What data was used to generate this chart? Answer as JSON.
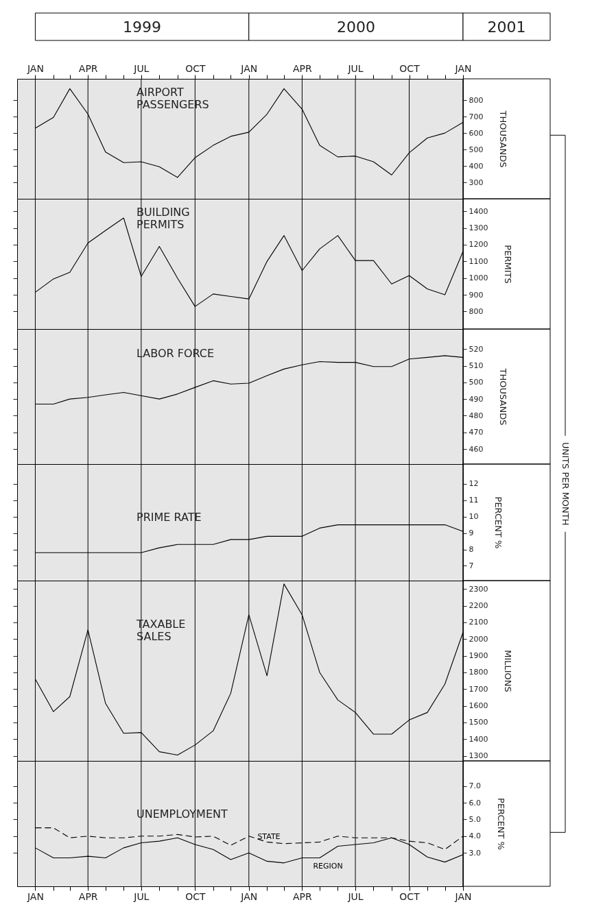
{
  "chart_data": [
    {
      "type": "line",
      "title": "AIRPORT\nPASSENGERS",
      "ylabel": "THOUSANDS",
      "annotations": [
        "1999",
        "2000",
        "2001",
        "UNITS PER MONTH"
      ],
      "x": [
        "1999-01",
        "1999-02",
        "1999-03",
        "1999-04",
        "1999-05",
        "1999-06",
        "1999-07",
        "1999-08",
        "1999-09",
        "1999-10",
        "1999-11",
        "1999-12",
        "2000-01",
        "2000-02",
        "2000-03",
        "2000-04",
        "2000-05",
        "2000-06",
        "2000-07",
        "2000-08",
        "2000-09",
        "2000-10",
        "2000-11",
        "2000-12",
        "2001-01"
      ],
      "xlim": [
        "1998-12",
        "2001-01"
      ],
      "xticks": [
        {
          "value": "1999-01",
          "label": "JAN"
        },
        {
          "value": "1999-02",
          "label": null
        },
        {
          "value": "1999-03",
          "label": null
        },
        {
          "value": "1999-04",
          "label": "APR"
        },
        {
          "value": "1999-05",
          "label": null
        },
        {
          "value": "1999-06",
          "label": null
        },
        {
          "value": "1999-07",
          "label": "JUL"
        },
        {
          "value": "1999-08",
          "label": null
        },
        {
          "value": "1999-09",
          "label": null
        },
        {
          "value": "1999-10",
          "label": "OCT"
        },
        {
          "value": "1999-11",
          "label": null
        },
        {
          "value": "1999-12",
          "label": null
        },
        {
          "value": "2000-01",
          "label": "JAN"
        },
        {
          "value": "2000-02",
          "label": null
        },
        {
          "value": "2000-03",
          "label": null
        },
        {
          "value": "2000-04",
          "label": "APR"
        },
        {
          "value": "2000-05",
          "label": null
        },
        {
          "value": "2000-06",
          "label": null
        },
        {
          "value": "2000-07",
          "label": "JUL"
        },
        {
          "value": "2000-08",
          "label": null
        },
        {
          "value": "2000-09",
          "label": null
        },
        {
          "value": "2000-10",
          "label": "OCT"
        },
        {
          "value": "2000-11",
          "label": null
        },
        {
          "value": "2000-12",
          "label": null
        },
        {
          "value": "2001-01",
          "label": "JAN"
        }
      ],
      "ylim": [
        200,
        930
      ],
      "yticks": [
        300,
        400,
        500,
        600,
        700,
        800
      ],
      "grid": "x",
      "series": [
        {
          "color": "#000000",
          "line_style": "solid",
          "values": [
            630,
            695,
            870,
            715,
            485,
            420,
            425,
            395,
            330,
            450,
            525,
            580,
            605,
            715,
            870,
            745,
            525,
            455,
            460,
            425,
            345,
            480,
            570,
            600,
            665
          ]
        }
      ]
    },
    {
      "type": "line",
      "title": "BUILDING\nPERMITS",
      "ylabel": "PERMITS",
      "tick_labels": "y",
      "x": [
        "1999-01",
        "1999-02",
        "1999-03",
        "1999-04",
        "1999-05",
        "1999-06",
        "1999-07",
        "1999-08",
        "1999-09",
        "1999-10",
        "1999-11",
        "1999-12",
        "2000-01",
        "2000-02",
        "2000-03",
        "2000-04",
        "2000-05",
        "2000-06",
        "2000-07",
        "2000-08",
        "2000-09",
        "2000-10",
        "2000-11",
        "2000-12",
        "2001-01"
      ],
      "xlim": [
        "1998-12",
        "2001-01"
      ],
      "xticks": [
        "1999-01",
        "1999-04",
        "1999-07",
        "1999-10",
        "2000-01",
        "2000-04",
        "2000-07",
        "2000-10",
        "2001-01"
      ],
      "ylim": [
        695,
        1475
      ],
      "yticks": [
        800,
        900,
        1000,
        1100,
        1200,
        1300,
        1400
      ],
      "grid": "x",
      "series": [
        {
          "color": "#000000",
          "line_style": "solid",
          "values": [
            915,
            995,
            1035,
            1210,
            1285,
            1360,
            1010,
            1190,
            1000,
            830,
            905,
            890,
            875,
            1100,
            1255,
            1045,
            1175,
            1255,
            1105,
            1105,
            965,
            1015,
            935,
            900,
            1160
          ]
        }
      ]
    },
    {
      "type": "line",
      "title": "LABOR  FORCE",
      "ylabel": "THOUSANDS",
      "tick_labels": "y",
      "x": [
        "1999-01",
        "1999-02",
        "1999-03",
        "1999-04",
        "1999-05",
        "1999-06",
        "1999-07",
        "1999-08",
        "1999-09",
        "1999-10",
        "1999-11",
        "1999-12",
        "2000-01",
        "2000-02",
        "2000-03",
        "2000-04",
        "2000-05",
        "2000-06",
        "2000-07",
        "2000-08",
        "2000-09",
        "2000-10",
        "2000-11",
        "2000-12",
        "2001-01"
      ],
      "xlim": [
        "1998-12",
        "2001-01"
      ],
      "xticks": [
        "1999-01",
        "1999-04",
        "1999-07",
        "1999-10",
        "2000-01",
        "2000-04",
        "2000-07",
        "2000-10",
        "2001-01"
      ],
      "ylim": [
        451,
        532
      ],
      "yticks": [
        460,
        470,
        480,
        490,
        500,
        510,
        520
      ],
      "grid": "x",
      "series": [
        {
          "color": "#000000",
          "line_style": "solid",
          "values": [
            487,
            487,
            490,
            491,
            492.5,
            494,
            492,
            490,
            493,
            497,
            501,
            499,
            499.5,
            504,
            508,
            510.5,
            512.5,
            512,
            512,
            509.5,
            509.5,
            514,
            515,
            516,
            515
          ]
        }
      ]
    },
    {
      "type": "line",
      "title": "PRIME  RATE",
      "ylabel": "PERCENT %",
      "tick_labels": "y",
      "x": [
        "1999-01",
        "1999-02",
        "1999-03",
        "1999-04",
        "1999-05",
        "1999-06",
        "1999-07",
        "1999-08",
        "1999-09",
        "1999-10",
        "1999-11",
        "1999-12",
        "2000-01",
        "2000-02",
        "2000-03",
        "2000-04",
        "2000-05",
        "2000-06",
        "2000-07",
        "2000-08",
        "2000-09",
        "2000-10",
        "2000-11",
        "2000-12",
        "2001-01"
      ],
      "xlim": [
        "1998-12",
        "2001-01"
      ],
      "xticks": [
        "1999-01",
        "1999-04",
        "1999-07",
        "1999-10",
        "2000-01",
        "2000-04",
        "2000-07",
        "2000-10",
        "2001-01"
      ],
      "ylim": [
        6.1,
        13.2
      ],
      "yticks": [
        7,
        8,
        9,
        10,
        11,
        12
      ],
      "grid": "x",
      "series": [
        {
          "color": "#000000",
          "line_style": "solid",
          "values": [
            7.8,
            7.8,
            7.8,
            7.8,
            7.8,
            7.8,
            7.8,
            8.1,
            8.3,
            8.3,
            8.3,
            8.6,
            8.6,
            8.8,
            8.8,
            8.8,
            9.3,
            9.5,
            9.5,
            9.5,
            9.5,
            9.5,
            9.5,
            9.5,
            9.1
          ]
        }
      ]
    },
    {
      "type": "line",
      "title": "TAXABLE\nSALES",
      "ylabel": "MILLIONS",
      "tick_labels": "y",
      "x": [
        "1999-01",
        "1999-02",
        "1999-03",
        "1999-04",
        "1999-05",
        "1999-06",
        "1999-07",
        "1999-08",
        "1999-09",
        "1999-10",
        "1999-11",
        "1999-12",
        "2000-01",
        "2000-02",
        "2000-03",
        "2000-04",
        "2000-05",
        "2000-06",
        "2000-07",
        "2000-08",
        "2000-09",
        "2000-10",
        "2000-11",
        "2000-12",
        "2001-01"
      ],
      "xlim": [
        "1998-12",
        "2001-01"
      ],
      "xticks": [
        "1999-01",
        "1999-04",
        "1999-07",
        "1999-10",
        "2000-01",
        "2000-04",
        "2000-07",
        "2000-10",
        "2001-01"
      ],
      "ylim": [
        1270,
        2350
      ],
      "yticks": [
        1300,
        1400,
        1500,
        1600,
        1700,
        1800,
        1900,
        2000,
        2100,
        2200,
        2300
      ],
      "grid": "x",
      "series": [
        {
          "color": "#000000",
          "line_style": "solid",
          "values": [
            1760,
            1565,
            1655,
            2055,
            1615,
            1435,
            1440,
            1325,
            1305,
            1365,
            1450,
            1675,
            2145,
            1780,
            2330,
            2145,
            1800,
            1635,
            1560,
            1430,
            1430,
            1515,
            1560,
            1730,
            2040
          ]
        }
      ]
    },
    {
      "type": "line",
      "title": "UNEMPLOYMENT",
      "ylabel": "PERCENT %",
      "x": [
        "1999-01",
        "1999-02",
        "1999-03",
        "1999-04",
        "1999-05",
        "1999-06",
        "1999-07",
        "1999-08",
        "1999-09",
        "1999-10",
        "1999-11",
        "1999-12",
        "2000-01",
        "2000-02",
        "2000-03",
        "2000-04",
        "2000-05",
        "2000-06",
        "2000-07",
        "2000-08",
        "2000-09",
        "2000-10",
        "2000-11",
        "2000-12",
        "2001-01"
      ],
      "xlim": [
        "1998-12",
        "2001-01"
      ],
      "xticks": [
        {
          "value": "1999-01",
          "label": "JAN"
        },
        {
          "value": "1999-02",
          "label": null
        },
        {
          "value": "1999-03",
          "label": null
        },
        {
          "value": "1999-04",
          "label": "APR"
        },
        {
          "value": "1999-05",
          "label": null
        },
        {
          "value": "1999-06",
          "label": null
        },
        {
          "value": "1999-07",
          "label": "JUL"
        },
        {
          "value": "1999-08",
          "label": null
        },
        {
          "value": "1999-09",
          "label": null
        },
        {
          "value": "1999-10",
          "label": "OCT"
        },
        {
          "value": "1999-11",
          "label": null
        },
        {
          "value": "1999-12",
          "label": null
        },
        {
          "value": "2000-01",
          "label": "JAN"
        },
        {
          "value": "2000-02",
          "label": null
        },
        {
          "value": "2000-03",
          "label": null
        },
        {
          "value": "2000-04",
          "label": "APR"
        },
        {
          "value": "2000-05",
          "label": null
        },
        {
          "value": "2000-06",
          "label": null
        },
        {
          "value": "2000-07",
          "label": "JUL"
        },
        {
          "value": "2000-08",
          "label": null
        },
        {
          "value": "2000-09",
          "label": null
        },
        {
          "value": "2000-10",
          "label": "OCT"
        },
        {
          "value": "2000-11",
          "label": null
        },
        {
          "value": "2000-12",
          "label": null
        },
        {
          "value": "2001-01",
          "label": "JAN"
        }
      ],
      "ylim": [
        1.0,
        8.5
      ],
      "yticks": [
        {
          "value": 3,
          "label": "3.0"
        },
        {
          "value": 4,
          "label": "4.0"
        },
        {
          "value": 5,
          "label": "5.0"
        },
        {
          "value": 6,
          "label": "6.0"
        },
        {
          "value": 7,
          "label": "7.0"
        }
      ],
      "grid": "x",
      "series": [
        {
          "name": "STATE",
          "color": "#000000",
          "line_style": "dashed",
          "values": [
            4.5,
            4.5,
            3.9,
            4.0,
            3.9,
            3.9,
            4.0,
            4.0,
            4.1,
            3.95,
            4.0,
            3.45,
            4.0,
            3.65,
            3.55,
            3.6,
            3.65,
            4.0,
            3.9,
            3.9,
            3.9,
            3.7,
            3.6,
            3.2,
            4.0
          ]
        },
        {
          "name": "REGION",
          "color": "#000000",
          "line_style": "solid",
          "values": [
            3.3,
            2.7,
            2.7,
            2.8,
            2.7,
            3.3,
            3.6,
            3.7,
            3.9,
            3.5,
            3.2,
            2.6,
            3.0,
            2.5,
            2.4,
            2.7,
            2.7,
            3.4,
            3.5,
            3.6,
            3.9,
            3.5,
            2.75,
            2.45,
            2.9
          ]
        }
      ]
    }
  ]
}
